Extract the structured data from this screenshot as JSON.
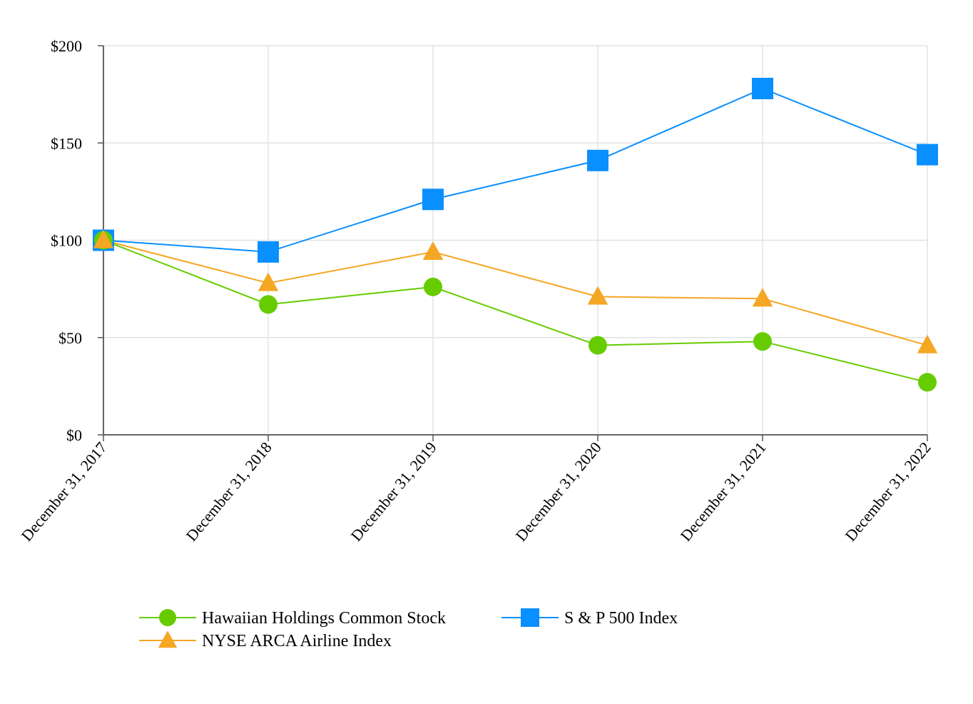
{
  "chart_data": {
    "type": "line",
    "title": "",
    "xlabel": "",
    "ylabel": "",
    "categories": [
      "December 31, 2017",
      "December 31, 2018",
      "December 31, 2019",
      "December 31, 2020",
      "December 31, 2021",
      "December 31, 2022"
    ],
    "ylim": [
      0,
      200
    ],
    "y_ticks": [
      0,
      50,
      100,
      150,
      200
    ],
    "y_tick_labels": [
      "$0",
      "$50",
      "$100",
      "$150",
      "$200"
    ],
    "grid": true,
    "legend_position": "bottom",
    "series": [
      {
        "name": "Hawaiian Holdings Common Stock",
        "marker": "circle",
        "color": "#66cc00",
        "values": [
          100,
          67,
          76,
          46,
          48,
          27
        ]
      },
      {
        "name": "S & P 500 Index",
        "marker": "square",
        "color": "#0a8fff",
        "values": [
          100,
          94,
          121,
          141,
          178,
          144
        ]
      },
      {
        "name": "NYSE ARCA Airline Index",
        "marker": "triangle",
        "color": "#f5a623",
        "values": [
          100,
          78,
          94,
          71,
          70,
          46
        ]
      }
    ]
  }
}
